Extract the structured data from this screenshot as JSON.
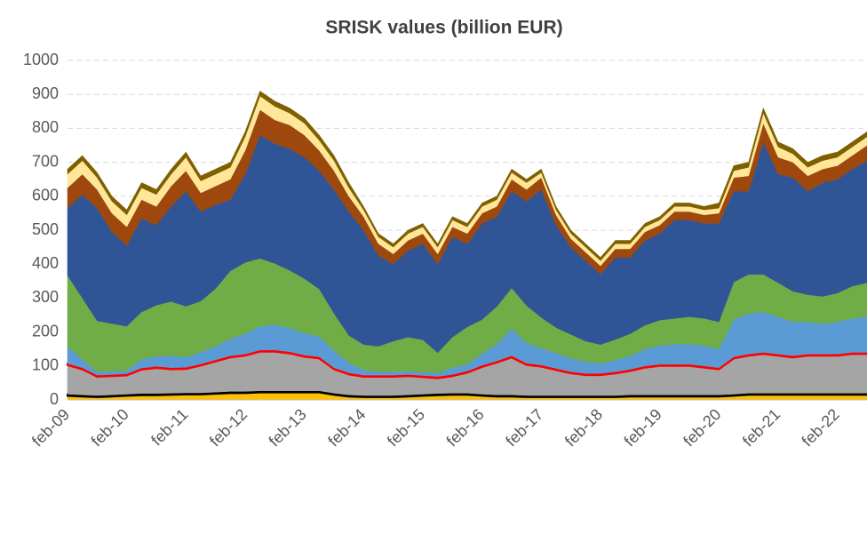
{
  "chart_data": {
    "type": "stacked_area",
    "title": "SRISK values (billion EUR)",
    "categories": [
      "feb-09",
      null,
      null,
      null,
      "feb-10",
      null,
      null,
      null,
      "feb-11",
      null,
      null,
      null,
      "feb-12",
      null,
      null,
      null,
      "feb-13",
      null,
      null,
      null,
      "feb-14",
      null,
      null,
      null,
      "feb-15",
      null,
      null,
      null,
      "feb-16",
      null,
      null,
      null,
      "feb-17",
      null,
      null,
      null,
      "feb-18",
      null,
      null,
      null,
      "feb-19",
      null,
      null,
      null,
      "feb-20",
      null,
      null,
      null,
      "feb-21",
      null,
      null,
      null,
      "feb-22",
      null,
      null
    ],
    "series": [
      {
        "color": "#ffc000",
        "values": [
          12,
          10,
          8,
          10,
          12,
          14,
          14,
          15,
          16,
          16,
          18,
          20,
          20,
          22,
          22,
          22,
          22,
          22,
          15,
          10,
          8,
          8,
          8,
          10,
          12,
          14,
          15,
          15,
          12,
          10,
          10,
          8,
          8,
          8,
          8,
          8,
          8,
          8,
          10,
          10,
          10,
          10,
          10,
          10,
          10,
          12,
          15,
          15,
          15,
          15,
          15,
          15,
          15,
          15,
          15
        ]
      },
      {
        "color": "#000000",
        "values": [
          5,
          5,
          5,
          5,
          5,
          5,
          5,
          5,
          5,
          5,
          5,
          5,
          5,
          5,
          5,
          5,
          5,
          5,
          5,
          5,
          5,
          5,
          5,
          5,
          5,
          5,
          5,
          5,
          5,
          5,
          5,
          5,
          5,
          5,
          5,
          5,
          5,
          5,
          5,
          5,
          5,
          5,
          5,
          5,
          5,
          5,
          5,
          5,
          5,
          5,
          5,
          5,
          5,
          5,
          5
        ]
      },
      {
        "color": "#a5a5a5",
        "values": [
          85,
          75,
          55,
          55,
          55,
          70,
          75,
          70,
          70,
          80,
          90,
          100,
          105,
          115,
          115,
          110,
          100,
          95,
          70,
          60,
          55,
          55,
          55,
          55,
          50,
          45,
          50,
          60,
          80,
          95,
          110,
          90,
          85,
          75,
          65,
          60,
          60,
          65,
          70,
          80,
          85,
          85,
          85,
          80,
          75,
          105,
          110,
          115,
          110,
          105,
          110,
          110,
          110,
          115,
          115
        ]
      },
      {
        "color": "#ff0000",
        "values": [
          5,
          5,
          5,
          5,
          5,
          5,
          5,
          5,
          5,
          5,
          5,
          5,
          5,
          5,
          5,
          5,
          5,
          5,
          5,
          5,
          5,
          5,
          5,
          5,
          5,
          5,
          5,
          5,
          5,
          5,
          5,
          5,
          5,
          5,
          5,
          5,
          5,
          5,
          5,
          5,
          5,
          5,
          5,
          5,
          5,
          5,
          5,
          5,
          5,
          5,
          5,
          5,
          5,
          5,
          5
        ]
      },
      {
        "color": "#5b9bd5",
        "values": [
          50,
          25,
          10,
          10,
          10,
          25,
          30,
          35,
          30,
          35,
          40,
          50,
          60,
          70,
          75,
          70,
          65,
          60,
          50,
          30,
          15,
          10,
          10,
          10,
          10,
          10,
          20,
          20,
          35,
          50,
          80,
          60,
          50,
          45,
          40,
          35,
          30,
          35,
          40,
          50,
          55,
          60,
          60,
          60,
          55,
          110,
          120,
          120,
          110,
          100,
          95,
          90,
          95,
          100,
          105
        ]
      },
      {
        "color": "#70ad47",
        "values": [
          210,
          180,
          150,
          140,
          130,
          140,
          150,
          160,
          150,
          150,
          170,
          200,
          210,
          200,
          180,
          170,
          160,
          140,
          110,
          80,
          75,
          75,
          90,
          100,
          95,
          60,
          90,
          110,
          100,
          110,
          120,
          110,
          90,
          75,
          70,
          60,
          55,
          60,
          65,
          70,
          75,
          75,
          80,
          80,
          80,
          110,
          115,
          110,
          100,
          90,
          80,
          80,
          85,
          95,
          100
        ]
      },
      {
        "color": "#2f5597",
        "values": [
          198,
          305,
          332,
          270,
          238,
          276,
          236,
          280,
          339,
          264,
          247,
          210,
          260,
          363,
          353,
          358,
          358,
          348,
          365,
          365,
          337,
          267,
          227,
          255,
          283,
          261,
          295,
          245,
          283,
          265,
          285,
          307,
          377,
          302,
          257,
          237,
          207,
          242,
          225,
          250,
          255,
          290,
          285,
          280,
          290,
          268,
          245,
          390,
          320,
          335,
          305,
          335,
          335,
          345,
          360
        ]
      },
      {
        "color": "#9e480e",
        "values": [
          60,
          60,
          55,
          55,
          55,
          55,
          55,
          60,
          60,
          55,
          55,
          60,
          70,
          75,
          70,
          70,
          65,
          60,
          55,
          45,
          40,
          35,
          30,
          30,
          30,
          30,
          30,
          30,
          30,
          30,
          35,
          35,
          35,
          30,
          25,
          25,
          25,
          25,
          25,
          25,
          25,
          25,
          25,
          25,
          30,
          40,
          45,
          55,
          50,
          45,
          45,
          40,
          40,
          40,
          45
        ]
      },
      {
        "color": "#ffe699",
        "values": [
          40,
          40,
          35,
          35,
          35,
          35,
          35,
          35,
          40,
          35,
          35,
          35,
          40,
          40,
          40,
          35,
          35,
          30,
          30,
          25,
          20,
          20,
          20,
          20,
          20,
          20,
          20,
          20,
          20,
          20,
          20,
          20,
          15,
          15,
          15,
          15,
          15,
          15,
          15,
          15,
          15,
          15,
          15,
          15,
          15,
          20,
          25,
          30,
          30,
          25,
          25,
          25,
          25,
          25,
          25
        ]
      },
      {
        "color": "#7f6000",
        "values": [
          15,
          15,
          15,
          15,
          15,
          15,
          15,
          15,
          15,
          15,
          15,
          15,
          15,
          15,
          15,
          15,
          15,
          15,
          15,
          15,
          10,
          10,
          10,
          10,
          10,
          10,
          10,
          10,
          10,
          10,
          10,
          10,
          10,
          10,
          10,
          10,
          10,
          10,
          10,
          10,
          10,
          10,
          10,
          10,
          15,
          15,
          15,
          15,
          15,
          15,
          15,
          15,
          15,
          15,
          15
        ]
      }
    ],
    "ylim": [
      0,
      1000
    ],
    "yticks": [
      0,
      100,
      200,
      300,
      400,
      500,
      600,
      700,
      800,
      900,
      1000
    ],
    "grid": true
  }
}
